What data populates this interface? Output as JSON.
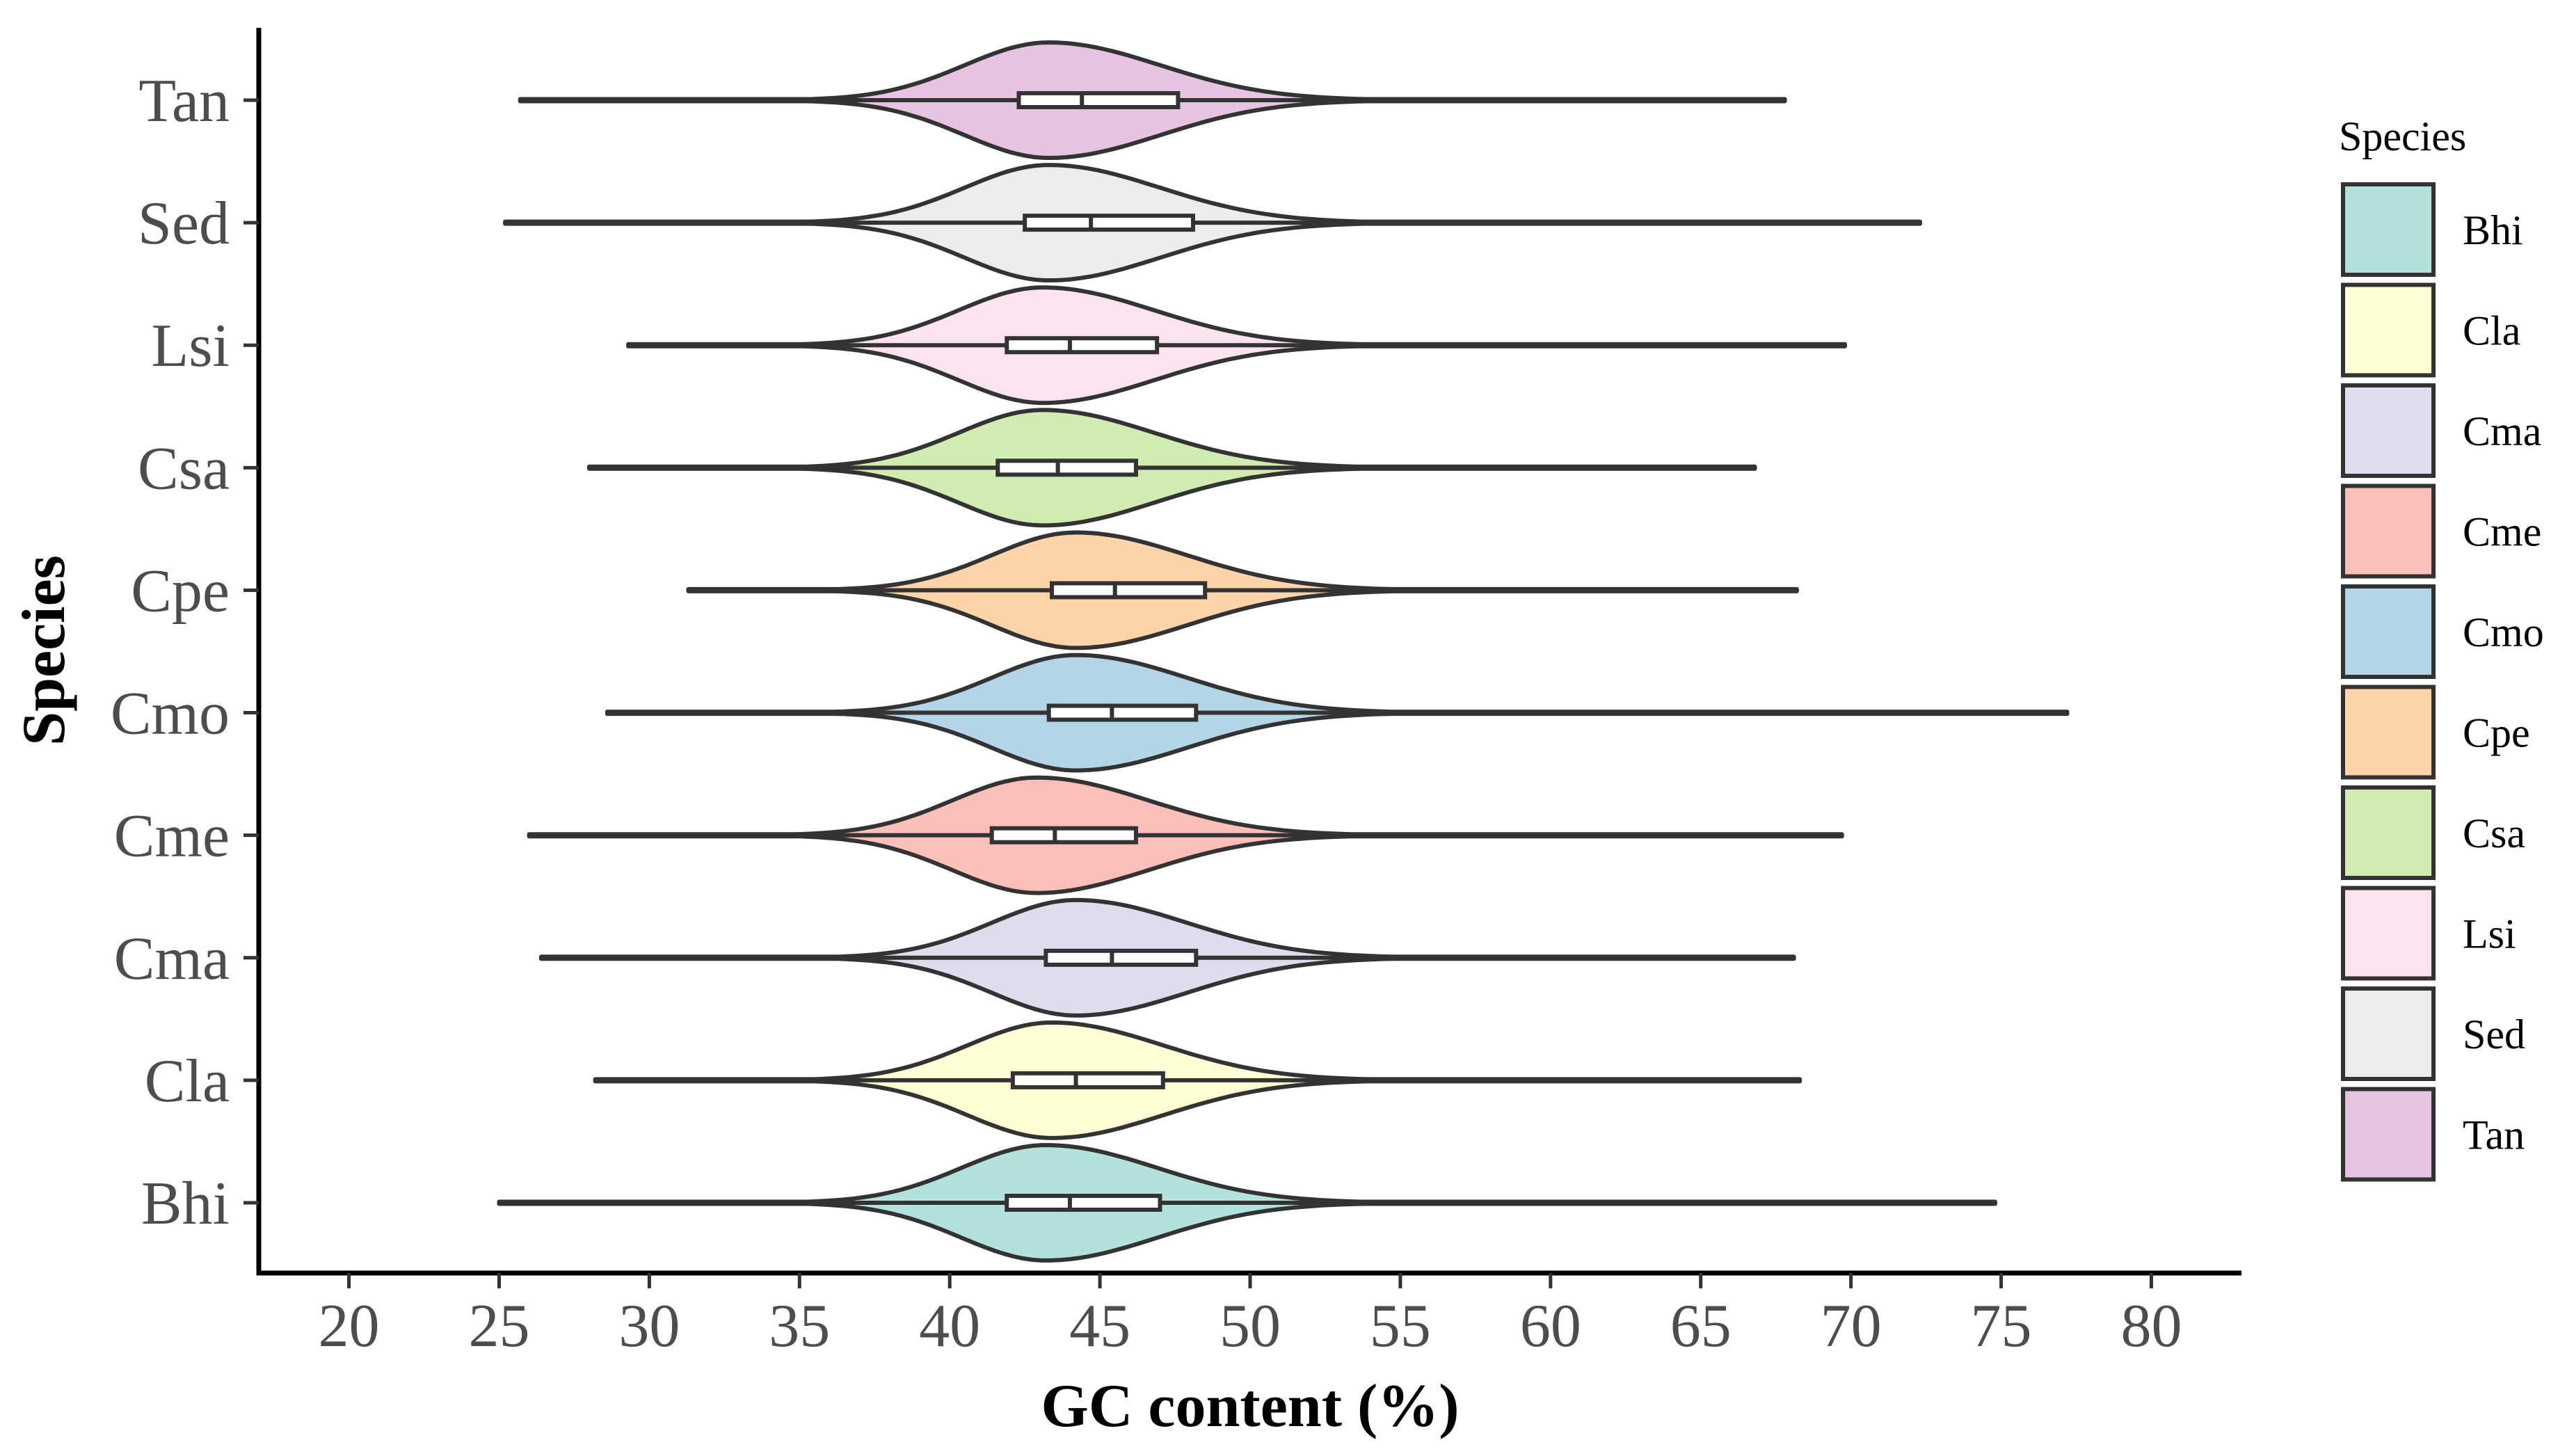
{
  "chart_data": {
    "type": "violin",
    "orientation": "horizontal",
    "xlabel": "GC content (%)",
    "ylabel": "Species",
    "xlim": [
      17,
      83
    ],
    "x_ticks": [
      20,
      25,
      30,
      35,
      40,
      45,
      50,
      55,
      60,
      65,
      70,
      75,
      80
    ],
    "grid": false,
    "legend": {
      "title": "Species",
      "position": "right",
      "entries": [
        "Bhi",
        "Cla",
        "Cma",
        "Cme",
        "Cmo",
        "Cpe",
        "Csa",
        "Lsi",
        "Sed",
        "Tan"
      ]
    },
    "series": [
      {
        "name": "Bhi",
        "color": "#b3e2dc",
        "min": 25.0,
        "max": 74.8,
        "q1": 41.9,
        "median": 44.0,
        "q3": 47.0,
        "mode": 43.2
      },
      {
        "name": "Cla",
        "color": "#ffffd6",
        "min": 28.2,
        "max": 68.3,
        "q1": 42.1,
        "median": 44.2,
        "q3": 47.1,
        "mode": 43.4
      },
      {
        "name": "Cma",
        "color": "#dedced",
        "min": 26.4,
        "max": 68.1,
        "q1": 43.2,
        "median": 45.4,
        "q3": 48.2,
        "mode": 44.2
      },
      {
        "name": "Cme",
        "color": "#fbbfba",
        "min": 26.0,
        "max": 69.7,
        "q1": 41.4,
        "median": 43.5,
        "q3": 46.2,
        "mode": 42.9
      },
      {
        "name": "Cmo",
        "color": "#b4d4e8",
        "min": 28.6,
        "max": 77.2,
        "q1": 43.3,
        "median": 45.4,
        "q3": 48.2,
        "mode": 44.2
      },
      {
        "name": "Cpe",
        "color": "#fdd3a9",
        "min": 31.3,
        "max": 68.2,
        "q1": 43.4,
        "median": 45.5,
        "q3": 48.5,
        "mode": 44.2
      },
      {
        "name": "Csa",
        "color": "#d1ecb0",
        "min": 28.0,
        "max": 66.8,
        "q1": 41.6,
        "median": 43.6,
        "q3": 46.2,
        "mode": 43.1
      },
      {
        "name": "Lsi",
        "color": "#fde2ef",
        "min": 29.3,
        "max": 69.8,
        "q1": 41.9,
        "median": 44.0,
        "q3": 46.9,
        "mode": 43.1
      },
      {
        "name": "Sed",
        "color": "#ececec",
        "min": 25.2,
        "max": 72.3,
        "q1": 42.5,
        "median": 44.7,
        "q3": 48.1,
        "mode": 43.3
      },
      {
        "name": "Tan",
        "color": "#e5c3e1",
        "min": 25.7,
        "max": 67.8,
        "q1": 42.3,
        "median": 44.4,
        "q3": 47.6,
        "mode": 43.3
      }
    ]
  }
}
